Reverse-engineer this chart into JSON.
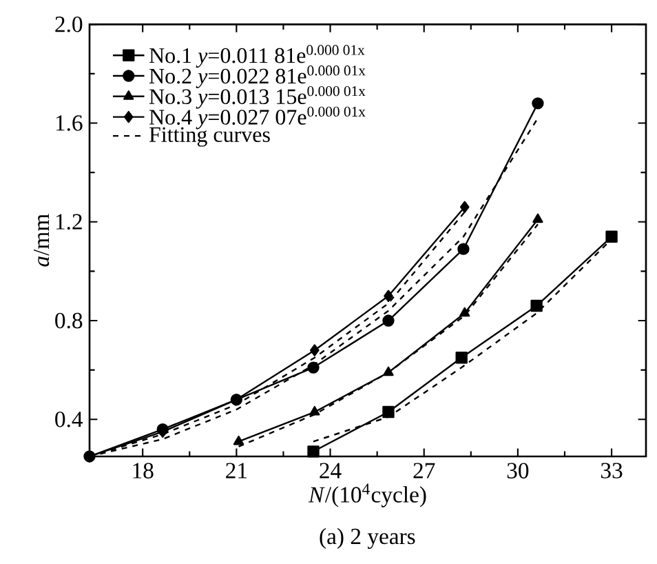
{
  "chart_data": {
    "type": "line",
    "xlabel": "*N*/(10$^{4}$cycle)",
    "ylabel": "*a*/mm",
    "annotations": [
      "(a) 2 years"
    ],
    "xlim": [
      16.3,
      34.1
    ],
    "ylim": [
      0.25,
      2.0
    ],
    "xticks": [
      18,
      21,
      24,
      27,
      30,
      33
    ],
    "yticks": [
      {
        "value": 0.4,
        "label": "0.4"
      },
      {
        "value": 0.8,
        "label": "0.8"
      },
      {
        "value": 1.2,
        "label": "1.2"
      },
      {
        "value": 1.6,
        "label": "1.6"
      },
      {
        "value": 2.0,
        "label": "2.0"
      }
    ],
    "grid": false,
    "legend": "top left",
    "series": [
      {
        "name": "No.1 *y*=0.011 81e$^{0.000 01x}$",
        "color": "#000000",
        "marker": "square",
        "line_style": "solid",
        "x": [
          23.46,
          25.86,
          28.2,
          30.6,
          33.0
        ],
        "values": [
          0.27,
          0.43,
          0.65,
          0.86,
          1.14
        ]
      },
      {
        "name": "No.2 *y*=0.022 81e$^{0.000 01x}$",
        "color": "#000000",
        "marker": "circle",
        "line_style": "solid",
        "x": [
          16.3,
          18.64,
          21.0,
          23.46,
          25.86,
          28.26,
          30.64
        ],
        "values": [
          0.25,
          0.36,
          0.48,
          0.61,
          0.8,
          1.09,
          1.68
        ]
      },
      {
        "name": "No.3 *y*=0.013 15e$^{0.000 01x}$",
        "color": "#000000",
        "marker": "triangle",
        "line_style": "solid",
        "x": [
          21.07,
          23.5,
          25.86,
          28.3,
          30.64
        ],
        "values": [
          0.31,
          0.43,
          0.59,
          0.83,
          1.21
        ]
      },
      {
        "name": "No.4 *y*=0.027 07e$^{0.000 01x}$",
        "color": "#000000",
        "marker": "diamond",
        "line_style": "solid",
        "x": [
          16.3,
          18.64,
          21.0,
          23.5,
          25.86,
          28.3
        ],
        "values": [
          0.25,
          0.35,
          0.48,
          0.68,
          0.9,
          1.26
        ]
      },
      {
        "name": "Fitting curves",
        "color": "#000000",
        "marker": "none",
        "line_style": "dashed",
        "x": [
          23.46,
          25.86,
          28.2,
          30.6,
          33.0
        ],
        "values": [
          0.31,
          0.41,
          0.61,
          0.83,
          1.13
        ]
      },
      {
        "color": "#000000",
        "marker": "none",
        "line_style": "dashed",
        "x": [
          16.3,
          18.64,
          21.0,
          23.46,
          25.86,
          28.26,
          30.64
        ],
        "values": [
          0.25,
          0.32,
          0.44,
          0.62,
          0.84,
          1.14,
          1.62
        ]
      },
      {
        "color": "#000000",
        "marker": "none",
        "line_style": "dashed",
        "x": [
          21.07,
          23.5,
          25.86,
          28.3,
          30.64
        ],
        "values": [
          0.29,
          0.42,
          0.59,
          0.82,
          1.19
        ]
      },
      {
        "color": "#000000",
        "marker": "none",
        "line_style": "dashed",
        "x": [
          16.3,
          18.64,
          21.0,
          23.5,
          25.86,
          28.3
        ],
        "values": [
          0.25,
          0.34,
          0.46,
          0.65,
          0.87,
          1.24
        ]
      }
    ]
  }
}
